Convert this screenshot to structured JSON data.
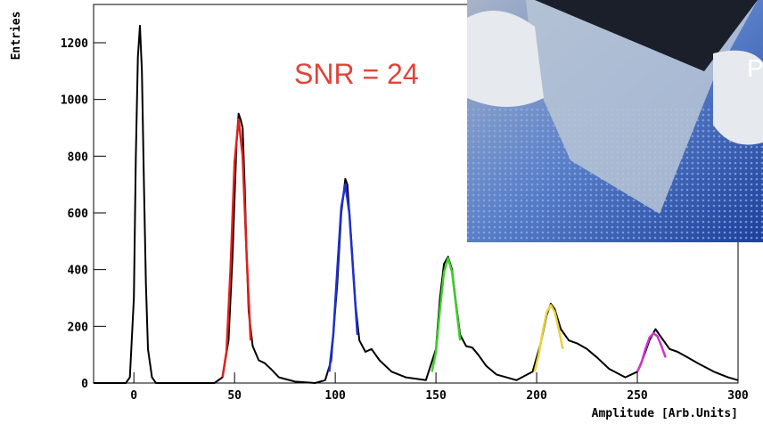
{
  "chart_data": {
    "type": "line",
    "y_label": "Entries",
    "x_label": "Amplitude [Arb.Units]",
    "annotation": "SNR = 24",
    "inset_text": "P",
    "xlim": [
      -20,
      300
    ],
    "ylim": [
      0,
      1335
    ],
    "xticks": [
      0,
      50,
      100,
      150,
      200,
      250,
      300
    ],
    "yticks": [
      0,
      200,
      400,
      600,
      800,
      1000,
      1200
    ],
    "series": [
      {
        "color": "#000000",
        "x": [
          -20,
          -4,
          -2,
          0,
          1,
          2,
          3,
          4,
          5,
          6,
          7,
          9,
          11,
          40,
          44,
          47,
          49,
          51,
          52,
          53,
          54,
          55,
          56,
          57,
          59,
          62,
          65,
          68,
          72,
          80,
          90,
          95,
          98,
          101,
          103,
          105,
          106,
          108,
          110,
          112,
          115,
          118,
          122,
          128,
          135,
          145,
          150,
          152,
          154,
          156,
          158,
          160,
          162,
          165,
          168,
          171,
          175,
          180,
          190,
          198,
          202,
          205,
          207,
          209,
          212,
          216,
          220,
          225,
          230,
          236,
          244,
          250,
          253,
          256,
          259,
          262,
          266,
          270,
          275,
          280,
          288,
          295,
          300
        ],
        "values": [
          0,
          0,
          20,
          300,
          800,
          1150,
          1260,
          1100,
          700,
          350,
          120,
          20,
          0,
          0,
          20,
          150,
          450,
          850,
          950,
          930,
          900,
          700,
          450,
          250,
          130,
          80,
          70,
          50,
          20,
          5,
          0,
          10,
          80,
          350,
          600,
          720,
          700,
          500,
          280,
          150,
          110,
          120,
          80,
          40,
          20,
          10,
          120,
          300,
          420,
          445,
          400,
          280,
          170,
          130,
          125,
          100,
          60,
          30,
          10,
          40,
          140,
          240,
          280,
          260,
          190,
          150,
          140,
          120,
          90,
          50,
          20,
          40,
          90,
          150,
          190,
          160,
          120,
          110,
          90,
          70,
          40,
          20,
          10
        ]
      },
      {
        "color": "#e0201c",
        "x": [
          44,
          46,
          48,
          50,
          52,
          54,
          56,
          58
        ],
        "values": [
          20,
          110,
          400,
          780,
          930,
          800,
          450,
          150
        ]
      },
      {
        "color": "#1f2fd0",
        "x": [
          97,
          99,
          101,
          103,
          105,
          107,
          109,
          111
        ],
        "values": [
          40,
          170,
          400,
          620,
          700,
          600,
          380,
          170
        ]
      },
      {
        "color": "#3fd02a",
        "x": [
          148,
          150,
          152,
          154,
          156,
          158,
          160,
          162
        ],
        "values": [
          40,
          110,
          260,
          390,
          440,
          390,
          270,
          150
        ]
      },
      {
        "color": "#e8d23a",
        "x": [
          199,
          201,
          203,
          205,
          207,
          209,
          211,
          213
        ],
        "values": [
          40,
          100,
          180,
          250,
          275,
          250,
          190,
          120
        ]
      },
      {
        "color": "#d033d0",
        "x": [
          250,
          252,
          254,
          256,
          258,
          260,
          262,
          264
        ],
        "values": [
          40,
          70,
          120,
          160,
          175,
          165,
          130,
          90
        ]
      }
    ]
  }
}
